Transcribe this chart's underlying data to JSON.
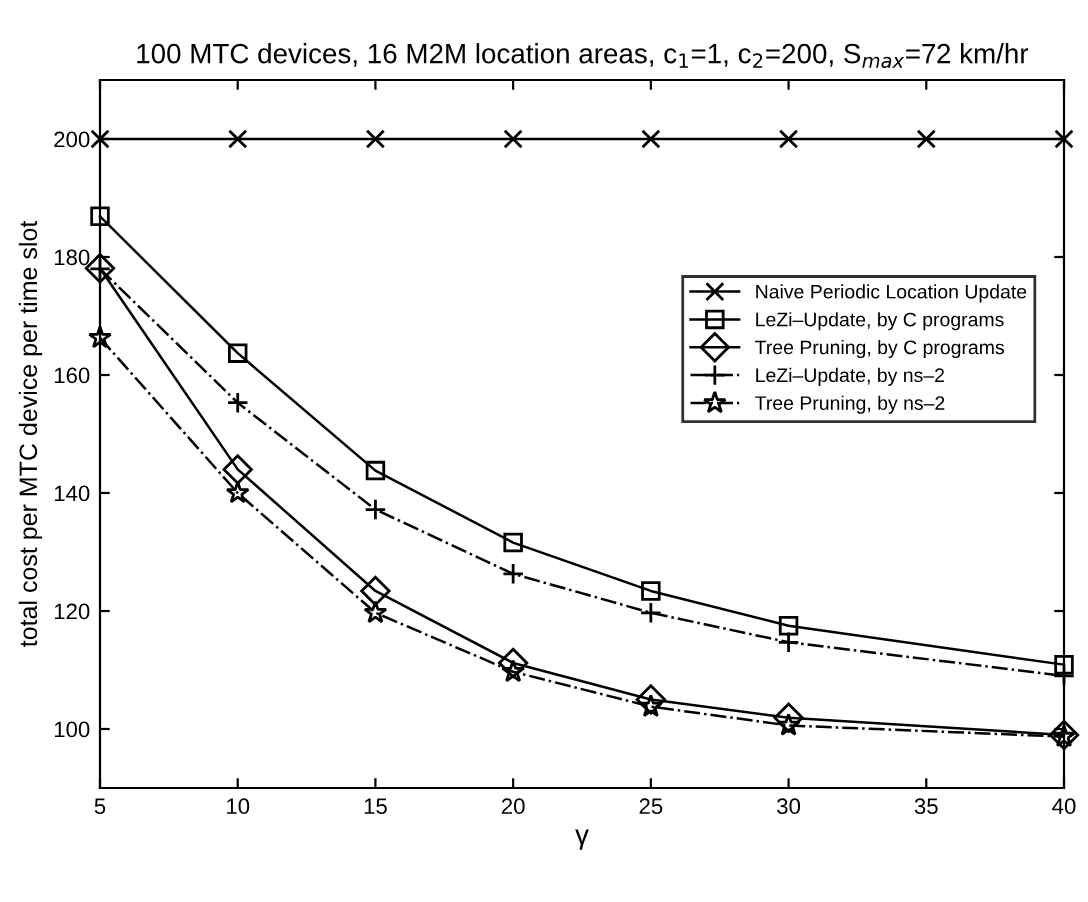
{
  "chart_data": {
    "type": "line",
    "title": "100 MTC devices, 16 M2M location areas, c$_{1}$=1, c$_{2}$=200, S$_{max}$=72 km/hr",
    "xlabel": "γ",
    "ylabel": "total cost per MTC device per time slot",
    "x": [
      5,
      10,
      15,
      20,
      25,
      30,
      40
    ],
    "xlim": [
      5,
      40
    ],
    "xticks": [
      5,
      10,
      15,
      20,
      25,
      30,
      35,
      40
    ],
    "ylim": [
      90,
      210
    ],
    "yticks": [
      100,
      120,
      140,
      160,
      180,
      200
    ],
    "grid": false,
    "legend": "right",
    "series": [
      {
        "name": "Naive Periodic Location Update",
        "color": "#000000",
        "marker": "cross",
        "line_style": "solid",
        "x": [
          5,
          10,
          15,
          20,
          25,
          30,
          35,
          40
        ],
        "values": [
          200,
          200,
          200,
          200,
          200,
          200,
          200,
          200
        ]
      },
      {
        "name": "LeZi–Update, by C programs",
        "color": "#000000",
        "marker": "square",
        "line_style": "solid",
        "values": [
          186.9,
          163.7,
          143.8,
          131.6,
          123.4,
          117.5,
          110.9
        ]
      },
      {
        "name": "Tree Pruning, by C programs",
        "color": "#000000",
        "marker": "diamond",
        "line_style": "solid",
        "values": [
          178.1,
          144,
          123.4,
          111.2,
          105,
          101.9,
          99
        ]
      },
      {
        "name": "LeZi–Update, by ns–2",
        "color": "#000000",
        "marker": "plus",
        "line_style": "dashdot",
        "values": [
          178,
          155.3,
          137.2,
          126.3,
          119.7,
          114.7,
          109
        ]
      },
      {
        "name": "Tree Pruning, by ns–2",
        "color": "#000000",
        "marker": "star",
        "line_style": "dashdot",
        "values": [
          166.3,
          140,
          119.7,
          109.7,
          103.8,
          100.6,
          98.7
        ]
      }
    ]
  }
}
